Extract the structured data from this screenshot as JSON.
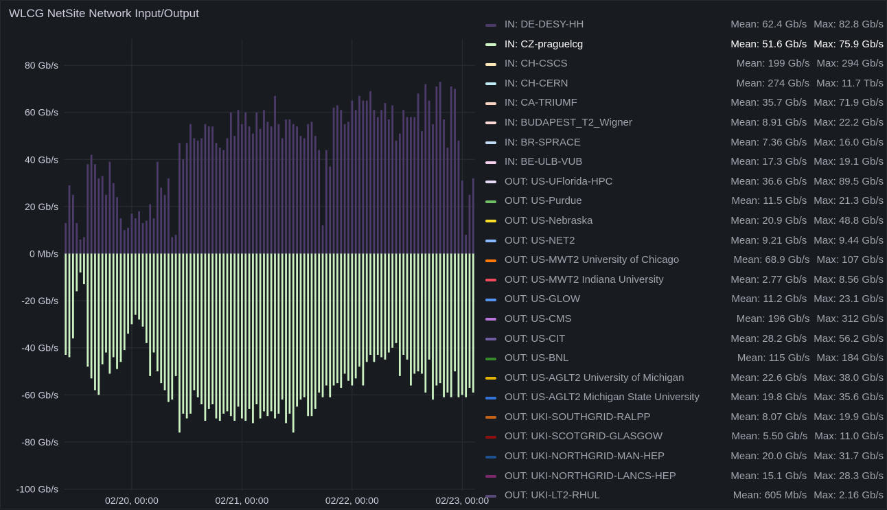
{
  "panel": {
    "title": "WLCG NetSite Network Input/Output"
  },
  "colors": {
    "in_bar": "#4c3b6b",
    "out_bar": "#ccf2c2",
    "grid": "#2c2f35"
  },
  "chart_data": {
    "type": "bar",
    "title": "WLCG NetSite Network Input/Output",
    "unit": "Gb/s",
    "ylim": [
      -100,
      90
    ],
    "y_ticks": [
      {
        "value": 80,
        "label": "80 Gb/s"
      },
      {
        "value": 60,
        "label": "60 Gb/s"
      },
      {
        "value": 40,
        "label": "40 Gb/s"
      },
      {
        "value": 20,
        "label": "20 Gb/s"
      },
      {
        "value": 0,
        "label": "0 Mb/s"
      },
      {
        "value": -20,
        "label": "-20 Gb/s"
      },
      {
        "value": -40,
        "label": "-40 Gb/s"
      },
      {
        "value": -60,
        "label": "-60 Gb/s"
      },
      {
        "value": -80,
        "label": "-80 Gb/s"
      },
      {
        "value": -100,
        "label": "-100 Gb/s"
      }
    ],
    "x_ticks": [
      {
        "index": 18.5,
        "label": "02/20, 00:00"
      },
      {
        "index": 48.5,
        "label": "02/21, 00:00"
      },
      {
        "index": 78.5,
        "label": "02/22, 00:00"
      },
      {
        "index": 108.5,
        "label": "02/23, 00:00"
      }
    ],
    "grid": true,
    "stacked": true,
    "series": [
      {
        "name": "IN",
        "values": [
          13,
          29,
          25,
          13,
          6,
          7,
          38,
          42,
          38,
          32,
          33,
          25,
          39,
          30,
          24,
          15,
          10,
          11,
          17,
          15,
          18,
          13,
          14,
          21,
          15,
          39,
          28,
          25,
          32,
          7,
          8,
          47,
          40,
          47,
          55,
          49,
          48,
          49,
          55,
          54,
          54,
          47,
          45,
          44,
          49,
          60,
          50,
          61,
          55,
          60,
          54,
          51,
          60,
          53,
          61,
          56,
          54,
          67,
          55,
          49,
          57,
          57,
          55,
          54,
          50,
          49,
          55,
          56,
          50,
          44,
          12,
          44,
          37,
          62,
          63,
          61,
          55,
          56,
          65,
          61,
          67,
          65,
          65,
          69,
          61,
          58,
          61,
          64,
          57,
          63,
          48,
          51,
          61,
          58,
          58,
          58,
          68,
          52,
          72,
          65,
          55,
          71,
          73,
          57,
          45,
          71,
          70,
          48,
          31,
          8,
          25,
          32
        ],
        "note_out_series": "OUT"
      },
      {
        "name": "OUT",
        "values": [
          -43,
          -44,
          -36,
          -16,
          -8,
          -13,
          -48,
          -53,
          -58,
          -60,
          -47,
          -42,
          -51,
          -44,
          -49,
          -46,
          -41,
          -34,
          -30,
          -26,
          -28,
          -31,
          -38,
          -52,
          -42,
          -50,
          -55,
          -58,
          -63,
          -62,
          -52,
          -76,
          -68,
          -70,
          -68,
          -58,
          -61,
          -64,
          -71,
          -66,
          -64,
          -70,
          -71,
          -68,
          -67,
          -69,
          -71,
          -65,
          -70,
          -71,
          -66,
          -72,
          -64,
          -70,
          -67,
          -69,
          -67,
          -70,
          -68,
          -62,
          -72,
          -68,
          -76,
          -65,
          -62,
          -61,
          -69,
          -69,
          -66,
          -59,
          -61,
          -56,
          -61,
          -56,
          -55,
          -57,
          -51,
          -54,
          -56,
          -53,
          -48,
          -56,
          -46,
          -43,
          -46,
          -43,
          -44,
          -45,
          -42,
          -40,
          -38,
          -52,
          -43,
          -45,
          -56,
          -51,
          -50,
          -51,
          -59,
          -45,
          -62,
          -56,
          -55,
          -61,
          -59,
          -61,
          -50,
          -61,
          -60,
          -61,
          -57,
          -59
        ]
      }
    ]
  },
  "legend": [
    {
      "name": "IN: DE-DESY-HH",
      "color": "#4c3b6b",
      "mean": "Mean: 62.4 Gb/s",
      "max": "Max: 82.8 Gb/s"
    },
    {
      "name": "IN: CZ-praguelcg",
      "color": "#ccf2c2",
      "mean": "Mean: 51.6 Gb/s",
      "max": "Max: 75.9 Gb/s",
      "active": true
    },
    {
      "name": "IN: CH-CSCS",
      "color": "#fde7b8",
      "mean": "Mean: 199 Gb/s",
      "max": "Max: 294 Gb/s"
    },
    {
      "name": "IN: CH-CERN",
      "color": "#c0ecf7",
      "mean": "Mean: 274 Gb/s",
      "max": "Max: 11.7 Tb/s"
    },
    {
      "name": "IN: CA-TRIUMF",
      "color": "#fcd5c2",
      "mean": "Mean: 35.7 Gb/s",
      "max": "Max: 71.9 Gb/s"
    },
    {
      "name": "IN: BUDAPEST_T2_Wigner",
      "color": "#fbd9d9",
      "mean": "Mean: 8.91 Gb/s",
      "max": "Max: 22.2 Gb/s"
    },
    {
      "name": "IN: BR-SPRACE",
      "color": "#c2dcf7",
      "mean": "Mean: 7.36 Gb/s",
      "max": "Max: 16.0 Gb/s"
    },
    {
      "name": "IN: BE-ULB-VUB",
      "color": "#f7d1ef",
      "mean": "Mean: 17.3 Gb/s",
      "max": "Max: 19.1 Gb/s"
    },
    {
      "name": "OUT: US-UFlorida-HPC",
      "color": "#e7dbf7",
      "mean": "Mean: 36.6 Gb/s",
      "max": "Max: 89.5 Gb/s"
    },
    {
      "name": "OUT: US-Purdue",
      "color": "#73bf69",
      "mean": "Mean: 11.5 Gb/s",
      "max": "Max: 21.3 Gb/s"
    },
    {
      "name": "OUT: US-Nebraska",
      "color": "#fade2a",
      "mean": "Mean: 20.9 Gb/s",
      "max": "Max: 48.8 Gb/s"
    },
    {
      "name": "OUT: US-NET2",
      "color": "#8ab8ff",
      "mean": "Mean: 9.21 Gb/s",
      "max": "Max: 9.44 Gb/s"
    },
    {
      "name": "OUT: US-MWT2 University of Chicago",
      "color": "#ff780a",
      "mean": "Mean: 68.9 Gb/s",
      "max": "Max: 107 Gb/s"
    },
    {
      "name": "OUT: US-MWT2 Indiana University",
      "color": "#f2495c",
      "mean": "Mean: 2.77 Gb/s",
      "max": "Max: 8.56 Gb/s"
    },
    {
      "name": "OUT: US-GLOW",
      "color": "#5794f2",
      "mean": "Mean: 11.2 Gb/s",
      "max": "Max: 23.1 Gb/s"
    },
    {
      "name": "OUT: US-CMS",
      "color": "#b877d9",
      "mean": "Mean: 196 Gb/s",
      "max": "Max: 312 Gb/s"
    },
    {
      "name": "OUT: US-CIT",
      "color": "#705da0",
      "mean": "Mean: 28.2 Gb/s",
      "max": "Max: 56.2 Gb/s"
    },
    {
      "name": "OUT: US-BNL",
      "color": "#37872d",
      "mean": "Mean: 115 Gb/s",
      "max": "Max: 184 Gb/s"
    },
    {
      "name": "OUT: US-AGLT2 University of Michigan",
      "color": "#e0b400",
      "mean": "Mean: 22.6 Gb/s",
      "max": "Max: 38.0 Gb/s"
    },
    {
      "name": "OUT: US-AGLT2 Michigan State University",
      "color": "#3274d9",
      "mean": "Mean: 19.8 Gb/s",
      "max": "Max: 35.6 Gb/s"
    },
    {
      "name": "OUT: UKI-SOUTHGRID-RALPP",
      "color": "#c4621a",
      "mean": "Mean: 8.07 Gb/s",
      "max": "Max: 19.9 Gb/s"
    },
    {
      "name": "OUT: UKI-SCOTGRID-GLASGOW",
      "color": "#8f1010",
      "mean": "Mean: 5.50 Gb/s",
      "max": "Max: 11.0 Gb/s"
    },
    {
      "name": "OUT: UKI-NORTHGRID-MAN-HEP",
      "color": "#1f4e8c",
      "mean": "Mean: 20.0 Gb/s",
      "max": "Max: 31.7 Gb/s"
    },
    {
      "name": "OUT: UKI-NORTHGRID-LANCS-HEP",
      "color": "#7c2a6b",
      "mean": "Mean: 15.1 Gb/s",
      "max": "Max: 28.3 Gb/s"
    },
    {
      "name": "OUT: UKI-LT2-RHUL",
      "color": "#5a4a7a",
      "mean": "Mean: 605 Mb/s",
      "max": "Max: 2.16 Gb/s"
    }
  ]
}
